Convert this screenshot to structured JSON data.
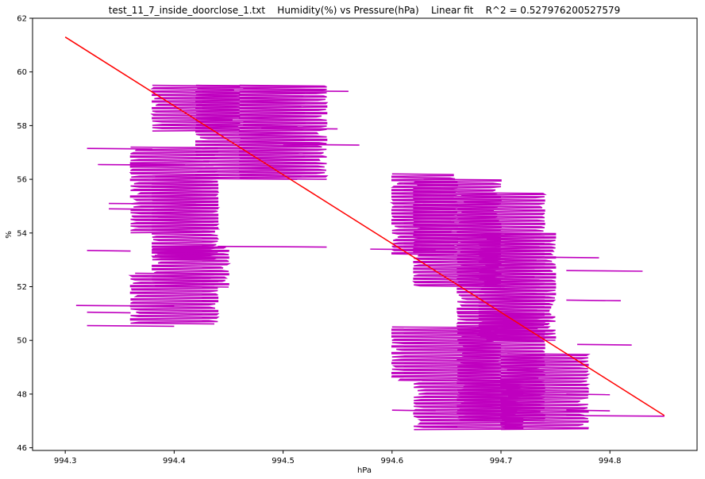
{
  "chart_data": {
    "type": "line",
    "title": "test_11_7_inside_doorclose_1.txt    Humidity(%) vs Pressure(hPa)    Linear fit    R^2 = 0.527976200527579",
    "xlabel": "hPa",
    "ylabel": "%",
    "xlim": [
      994.27,
      994.88
    ],
    "ylim": [
      45.9,
      62.0
    ],
    "x_ticks": [
      994.3,
      994.4,
      994.5,
      994.6,
      994.7,
      994.8
    ],
    "x_tick_labels": [
      "994.3",
      "994.4",
      "994.5",
      "994.6",
      "994.7",
      "994.8"
    ],
    "y_ticks": [
      46,
      48,
      50,
      52,
      54,
      56,
      58,
      60,
      62
    ],
    "y_tick_labels": [
      "46",
      "48",
      "50",
      "52",
      "54",
      "56",
      "58",
      "60",
      "62"
    ],
    "grid": false,
    "series": [
      {
        "role": "data",
        "color": "#bf00bf",
        "regions": [
          {
            "x": [
              994.38,
              994.46
            ],
            "y": [
              59.5,
              57.8
            ]
          },
          {
            "x": [
              994.42,
              994.52
            ],
            "y": [
              59.5,
              56.0
            ]
          },
          {
            "x": [
              994.46,
              994.54
            ],
            "y": [
              59.5,
              56.0
            ]
          },
          {
            "x": [
              994.36,
              994.44
            ],
            "y": [
              57.2,
              54.0
            ]
          },
          {
            "x": [
              994.38,
              994.44
            ],
            "y": [
              56.2,
              53.0
            ]
          },
          {
            "x": [
              994.38,
              994.45
            ],
            "y": [
              53.5,
              52.0
            ]
          },
          {
            "x": [
              994.36,
              994.44
            ],
            "y": [
              52.5,
              50.6
            ]
          },
          {
            "x": [
              994.6,
              994.66
            ],
            "y": [
              56.2,
              53.2
            ]
          },
          {
            "x": [
              994.62,
              994.7
            ],
            "y": [
              56.0,
              52.0
            ]
          },
          {
            "x": [
              994.66,
              994.74
            ],
            "y": [
              55.5,
              51.0
            ]
          },
          {
            "x": [
              994.68,
              994.75
            ],
            "y": [
              54.0,
              50.0
            ]
          },
          {
            "x": [
              994.66,
              994.74
            ],
            "y": [
              51.0,
              47.0
            ]
          },
          {
            "x": [
              994.6,
              994.7
            ],
            "y": [
              50.5,
              48.5
            ]
          },
          {
            "x": [
              994.62,
              994.72
            ],
            "y": [
              48.5,
              46.7
            ]
          },
          {
            "x": [
              994.7,
              994.78
            ],
            "y": [
              49.5,
              46.7
            ]
          }
        ]
      },
      {
        "role": "fit",
        "color": "#ff0000",
        "x": [
          994.3,
          994.85
        ],
        "y": [
          61.3,
          47.2
        ]
      }
    ]
  }
}
